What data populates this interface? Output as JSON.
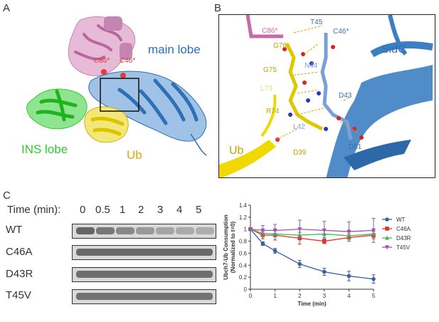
{
  "panels": {
    "A": {
      "letter": "A",
      "labels": {
        "main_lobe": "main lobe",
        "ins_lobe": "INS lobe",
        "ub": "Ub",
        "c86": "C86*",
        "c46": "C46*"
      },
      "colors": {
        "main_lobe": "#2e6fb5",
        "ins_lobe": "#2ecc2e",
        "ub": "#d9c400",
        "pink": "#d58cbf",
        "red": "#e23b3b"
      }
    },
    "B": {
      "letter": "B",
      "labels": {
        "sidc": "SidC",
        "ub": "Ub",
        "residues": {
          "c86": "C86*",
          "t45": "T45",
          "c46": "C46*",
          "g76": "G76",
          "n44": "N44",
          "g75": "G75",
          "l73": "L73",
          "d43": "D43",
          "r74": "R74",
          "l42": "L42",
          "d39": "D39",
          "d51": "D51"
        }
      }
    },
    "C": {
      "letter": "C",
      "time_header": "Time (min):",
      "time_points": [
        "0",
        "0.5",
        "1",
        "2",
        "3",
        "4",
        "5"
      ],
      "samples": [
        "WT",
        "C46A",
        "D43R",
        "T45V"
      ]
    }
  },
  "chart_data": {
    "type": "line",
    "ylabel": "Ubch7-Ub Consumption\n(Normalized to t=0)",
    "xlabel": "Time (min)",
    "xlim": [
      0,
      5
    ],
    "ylim": [
      0,
      1.4
    ],
    "xticks": [
      "0",
      "1",
      "2",
      "3",
      "4",
      "5"
    ],
    "yticks": [
      "0",
      "0.2",
      "0.4",
      "0.6",
      "0.8",
      "1",
      "1.2",
      "1.4"
    ],
    "x": [
      0,
      0.5,
      1,
      2,
      3,
      4,
      5
    ],
    "legend_position": "right",
    "series": [
      {
        "name": "WT",
        "color": "#3a5fa8",
        "marker": "circle",
        "values": [
          1.0,
          0.76,
          0.64,
          0.42,
          0.29,
          0.22,
          0.17
        ],
        "err": [
          0.02,
          0.03,
          0.04,
          0.06,
          0.06,
          0.08,
          0.07
        ]
      },
      {
        "name": "C46A",
        "color": "#e0312b",
        "marker": "square",
        "values": [
          1.0,
          0.9,
          0.9,
          0.85,
          0.8,
          0.86,
          0.9
        ],
        "err": [
          0.02,
          0.06,
          0.08,
          0.1,
          0.04,
          0.06,
          0.06
        ]
      },
      {
        "name": "D43R",
        "color": "#49b649",
        "marker": "triangle",
        "values": [
          1.0,
          0.93,
          0.92,
          0.9,
          0.92,
          0.89,
          0.92
        ],
        "err": [
          0.02,
          0.05,
          0.05,
          0.05,
          0.06,
          0.06,
          0.06
        ]
      },
      {
        "name": "T45V",
        "color": "#9b52b5",
        "marker": "triangle-down",
        "values": [
          1.0,
          0.98,
          0.98,
          1.0,
          0.98,
          0.96,
          0.98
        ],
        "err": [
          0.02,
          0.08,
          0.1,
          0.15,
          0.15,
          0.16,
          0.2
        ]
      }
    ]
  }
}
